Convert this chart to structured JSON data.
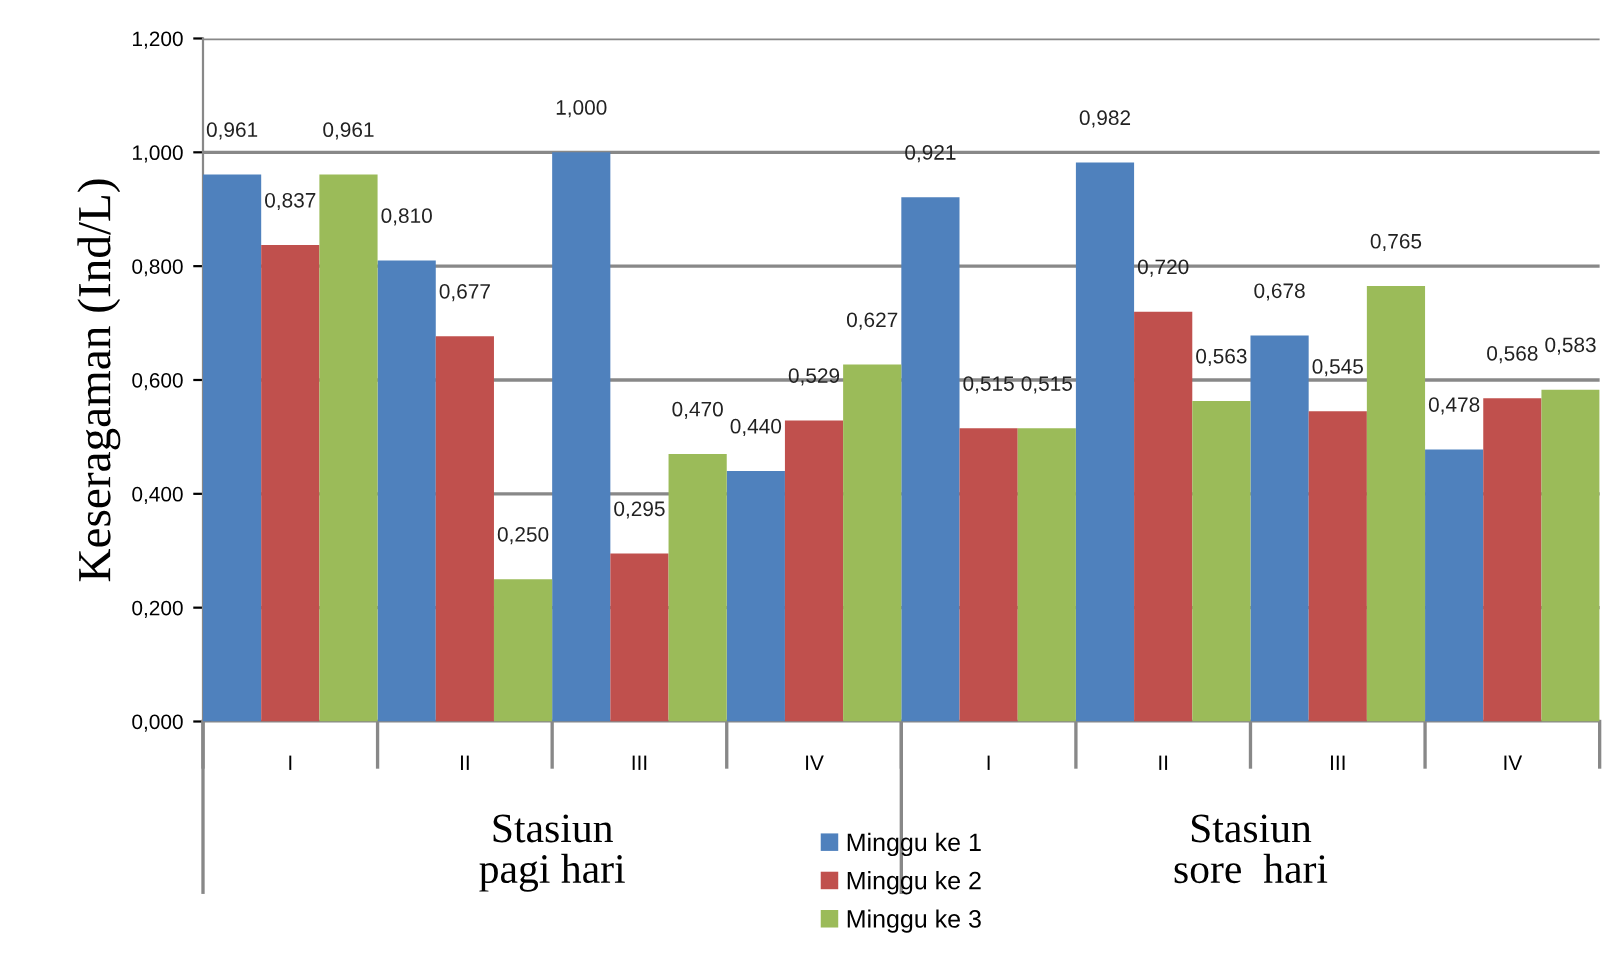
{
  "chart_data": {
    "type": "bar",
    "ylabel": "Keseragaman (Ind/L)",
    "categories": [
      "I",
      "II",
      "III",
      "IV",
      "I",
      "II",
      "III",
      "IV"
    ],
    "series": [
      {
        "name": "Minggu ke 1",
        "color": "#4f81bd",
        "values": [
          0.961,
          0.81,
          1.0,
          0.44,
          0.921,
          0.982,
          0.678,
          0.478
        ],
        "value_labels": [
          "0,961",
          "0,810",
          "1,000",
          "0,440",
          "0,921",
          "0,982",
          "0,678",
          "0,478"
        ]
      },
      {
        "name": "Minggu ke 2",
        "color": "#c0504d",
        "values": [
          0.837,
          0.677,
          0.295,
          0.529,
          0.515,
          0.72,
          0.545,
          0.568
        ],
        "value_labels": [
          "0,837",
          "0,677",
          "0,295",
          "0,529",
          "0,515",
          "0,720",
          "0,545",
          "0,568"
        ]
      },
      {
        "name": "Minggu ke 3",
        "color": "#9bbb59",
        "values": [
          0.961,
          0.25,
          0.47,
          0.627,
          0.515,
          0.563,
          0.765,
          0.583
        ],
        "value_labels": [
          "0,961",
          "0,250",
          "0,470",
          "0,627",
          "0,515",
          "0,563",
          "0,765",
          "0,583"
        ]
      }
    ],
    "ylim": [
      0,
      1.2
    ],
    "yticks": [
      {
        "value": 0,
        "label": "0,000"
      },
      {
        "value": 0.2,
        "label": "0,200"
      },
      {
        "value": 0.4,
        "label": "0,400"
      },
      {
        "value": 0.6,
        "label": "0,600"
      },
      {
        "value": 0.8,
        "label": "0,800"
      },
      {
        "value": 1.0,
        "label": "1,000"
      },
      {
        "value": 1.2,
        "label": "1,200"
      }
    ],
    "grid": "y",
    "legend": "bottom",
    "annotations": [
      "Stasiun\npagi hari",
      "Stasiun\nsore  hari"
    ]
  }
}
